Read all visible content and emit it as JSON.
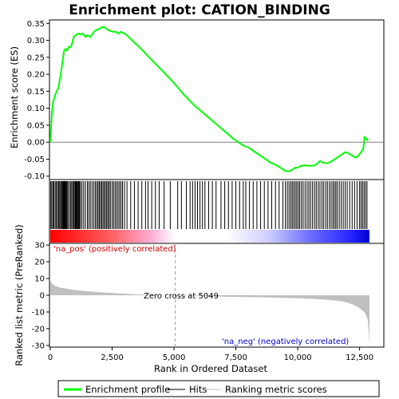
{
  "chart_data": {
    "type": "line",
    "title": "Enrichment plot: CATION_BINDING",
    "n_ranks": 12900,
    "x_ticks": [
      0,
      2500,
      5000,
      7500,
      10000,
      12500
    ],
    "x_tick_labels": [
      "0",
      "2,500",
      "5,000",
      "7,500",
      "10,000",
      "12,500"
    ],
    "xlabel": "Rank in Ordered Dataset",
    "panel_top": {
      "ylabel": "Enrichment score (ES)",
      "ylim": [
        -0.11,
        0.36
      ],
      "y_ticks": [
        -0.1,
        -0.05,
        0.0,
        0.05,
        0.1,
        0.15,
        0.2,
        0.25,
        0.3,
        0.35
      ],
      "y_tick_labels": [
        "-0.10",
        "-0.05",
        "0.00",
        "0.05",
        "0.10",
        "0.15",
        "0.20",
        "0.25",
        "0.30",
        "0.35"
      ],
      "series": [
        {
          "name": "Enrichment profile",
          "color": "#00ff00",
          "x": [
            0,
            60,
            120,
            200,
            260,
            330,
            400,
            460,
            520,
            560,
            620,
            680,
            740,
            800,
            860,
            950,
            1020,
            1080,
            1150,
            1220,
            1320,
            1420,
            1500,
            1620,
            1760,
            1850,
            1950,
            2050,
            2150,
            2250,
            2350,
            2450,
            2550,
            2650,
            2750,
            2850,
            2950,
            3100,
            3300,
            3600,
            4000,
            4400,
            4800,
            5049,
            5400,
            5800,
            6200,
            6600,
            7000,
            7400,
            7800,
            8000,
            8300,
            8600,
            8900,
            9200,
            9500,
            9700,
            9800,
            9900,
            10000,
            10100,
            10300,
            10500,
            10700,
            10800,
            10900,
            11000,
            11200,
            11400,
            11500,
            11600,
            11700,
            11800,
            11900,
            12000,
            12100,
            12200,
            12350,
            12450,
            12550,
            12650,
            12700,
            12750,
            12850
          ],
          "y": [
            0.0,
            0.08,
            0.12,
            0.14,
            0.15,
            0.16,
            0.19,
            0.22,
            0.25,
            0.27,
            0.275,
            0.27,
            0.28,
            0.28,
            0.285,
            0.31,
            0.315,
            0.318,
            0.32,
            0.317,
            0.32,
            0.31,
            0.315,
            0.31,
            0.325,
            0.33,
            0.333,
            0.337,
            0.34,
            0.335,
            0.33,
            0.327,
            0.325,
            0.325,
            0.32,
            0.325,
            0.322,
            0.315,
            0.3,
            0.28,
            0.25,
            0.22,
            0.19,
            0.17,
            0.14,
            0.11,
            0.085,
            0.06,
            0.035,
            0.01,
            -0.01,
            -0.015,
            -0.03,
            -0.045,
            -0.06,
            -0.07,
            -0.085,
            -0.085,
            -0.08,
            -0.075,
            -0.075,
            -0.07,
            -0.068,
            -0.07,
            -0.068,
            -0.062,
            -0.055,
            -0.06,
            -0.062,
            -0.055,
            -0.05,
            -0.045,
            -0.04,
            -0.035,
            -0.03,
            -0.03,
            -0.035,
            -0.04,
            -0.045,
            -0.04,
            -0.03,
            -0.02,
            0.015,
            0.012,
            0.005
          ]
        }
      ]
    },
    "panel_hits": {
      "label": "Hits",
      "hit_ranks": [
        20,
        60,
        110,
        150,
        200,
        250,
        290,
        340,
        380,
        420,
        460,
        490,
        520,
        540,
        560,
        580,
        600,
        630,
        650,
        680,
        720,
        780,
        830,
        870,
        920,
        960,
        1000,
        1030,
        1060,
        1090,
        1120,
        1150,
        1180,
        1220,
        1280,
        1350,
        1420,
        1500,
        1560,
        1620,
        1690,
        1760,
        1820,
        1880,
        1930,
        1980,
        2030,
        2080,
        2130,
        2180,
        2230,
        2280,
        2330,
        2380,
        2430,
        2500,
        2560,
        2620,
        2680,
        2740,
        2800,
        2860,
        2920,
        3000,
        3100,
        3250,
        3400,
        3550,
        3700,
        3850,
        3950,
        4100,
        4250,
        4400,
        4600,
        4850,
        5150,
        5300,
        5500,
        5650,
        5750,
        5850,
        5950,
        6050,
        6150,
        6250,
        6400,
        6550,
        6700,
        6900,
        7050,
        7200,
        7350,
        7500,
        7650,
        7800,
        7900,
        8050,
        8200,
        8350,
        8500,
        8650,
        8800,
        8950,
        9100,
        9250,
        9400,
        9500,
        9580,
        9650,
        9720,
        9780,
        9840,
        9900,
        9960,
        10020,
        10080,
        10150,
        10220,
        10300,
        10380,
        10450,
        10520,
        10600,
        10680,
        10750,
        10830,
        10900,
        10980,
        11050,
        11130,
        11200,
        11280,
        11350,
        11420,
        11480,
        11540,
        11600,
        11680,
        11760,
        11840,
        11920,
        12000,
        12100,
        12200,
        12300,
        12400,
        12500,
        12560,
        12620,
        12680,
        12740,
        12800
      ]
    },
    "panel_metric": {
      "ylabel": "Ranked list metric (PreRanked)",
      "ylim": [
        -31,
        31
      ],
      "y_ticks": [
        -30,
        -20,
        -10,
        0,
        10,
        20,
        30
      ],
      "y_tick_labels": [
        "-30",
        "-20",
        "-10",
        "0",
        "10",
        "20",
        "30"
      ],
      "x": [
        0,
        30,
        100,
        200,
        400,
        700,
        1000,
        1500,
        2000,
        2500,
        3000,
        3500,
        4000,
        4500,
        5049,
        5500,
        6000,
        7000,
        8000,
        9000,
        10000,
        10500,
        11000,
        11500,
        11800,
        12000,
        12200,
        12400,
        12550,
        12700,
        12780,
        12830,
        12870,
        12900
      ],
      "y": [
        9.0,
        7.8,
        6.5,
        5.6,
        4.6,
        3.8,
        3.1,
        2.4,
        1.8,
        1.3,
        0.9,
        0.6,
        0.3,
        0.1,
        0.0,
        -0.2,
        -0.4,
        -0.8,
        -1.1,
        -1.4,
        -1.8,
        -2.1,
        -2.5,
        -3.1,
        -3.7,
        -4.4,
        -5.4,
        -6.8,
        -8.3,
        -10.2,
        -12.5,
        -15.0,
        -22.0,
        -30.0
      ],
      "zero_cross_label": "Zero cross at 5049",
      "zero_cross_rank": 5049,
      "pos_label": "'na_pos' (positively correlated)",
      "neg_label": "'na_neg' (negatively correlated)"
    },
    "legend": [
      {
        "label": "Enrichment profile",
        "color": "#00ff00"
      },
      {
        "label": "Hits",
        "color": "#000000"
      },
      {
        "label": "Ranking metric scores",
        "color": "#c0c0c0"
      }
    ]
  }
}
